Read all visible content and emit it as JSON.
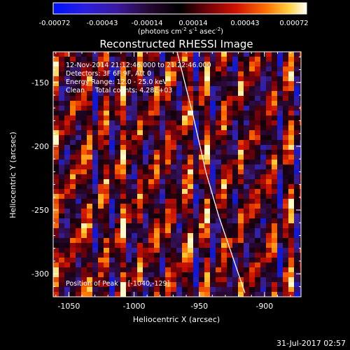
{
  "colorbar": {
    "ticks": [
      "-0.00072",
      "-0.00043",
      "-0.00014",
      "0.00014",
      "0.00043",
      "0.00072"
    ],
    "unit_label_main": "(photons cm",
    "unit_label_exp1": "-2",
    "unit_label_mid": " s",
    "unit_label_exp2": "-1",
    "unit_label_end": " asec",
    "unit_label_exp3": "-2",
    "unit_label_close": ")"
  },
  "plot": {
    "title": "Reconstructed RHESSI Image",
    "xlabel": "Heliocentric X (arcsec)",
    "ylabel": "Heliocentric Y (arcsec)",
    "x_ticks": [
      "-1050",
      "-1000",
      "-950",
      "-900"
    ],
    "y_ticks": [
      "-150",
      "-200",
      "-250",
      "-300"
    ],
    "annotations": {
      "time_range": "12-Nov-2014 21:12:46.000 to 21:22:46.000",
      "detectors": "Detectors: 3F 6F 9F, Att 0",
      "energy_range": "Energy Range: 12.0 - 25.0 keV",
      "method": "Clean     Total counts: 4.28E+03",
      "peak": "Position of Peak = [-1040,-129]"
    }
  },
  "footer": {
    "timestamp": "31-Jul-2017 02:57"
  },
  "chart_data": {
    "type": "heatmap",
    "title": "Reconstructed RHESSI Image",
    "xlabel": "Heliocentric X (arcsec)",
    "ylabel": "Heliocentric Y (arcsec)",
    "xlim": [
      -1062,
      -872
    ],
    "ylim": [
      -318,
      -126
    ],
    "colorbar_range": [
      -0.00072,
      0.00072
    ],
    "colormap": "hot-blue diverging",
    "limb_curve": {
      "x": [
        -967,
        -955,
        -945,
        -935,
        -925,
        -915
      ],
      "y": [
        -126,
        -175,
        -220,
        -255,
        -285,
        -315
      ]
    },
    "peak": [
      -1040,
      -129
    ]
  }
}
